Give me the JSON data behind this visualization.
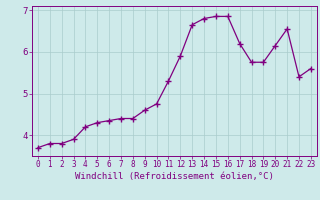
{
  "x": [
    0,
    1,
    2,
    3,
    4,
    5,
    6,
    7,
    8,
    9,
    10,
    11,
    12,
    13,
    14,
    15,
    16,
    17,
    18,
    19,
    20,
    21,
    22,
    23
  ],
  "y": [
    3.7,
    3.8,
    3.8,
    3.9,
    4.2,
    4.3,
    4.35,
    4.4,
    4.4,
    4.6,
    4.75,
    5.3,
    5.9,
    6.65,
    6.8,
    6.85,
    6.85,
    6.2,
    5.75,
    5.75,
    6.15,
    6.55,
    5.4,
    5.6
  ],
  "line_color": "#800080",
  "marker": "+",
  "marker_size": 4,
  "xlim": [
    -0.5,
    23.5
  ],
  "ylim": [
    3.5,
    7.1
  ],
  "yticks": [
    4,
    5,
    6,
    7
  ],
  "xticks": [
    0,
    1,
    2,
    3,
    4,
    5,
    6,
    7,
    8,
    9,
    10,
    11,
    12,
    13,
    14,
    15,
    16,
    17,
    18,
    19,
    20,
    21,
    22,
    23
  ],
  "bg_color": "#ceeaea",
  "grid_color": "#aacccc",
  "tick_color": "#800080",
  "label_color": "#800080",
  "xlabel": "Windchill (Refroidissement éolien,°C)",
  "xtick_fontsize": 5.5,
  "ytick_fontsize": 6.5,
  "xlabel_fontsize": 6.5
}
